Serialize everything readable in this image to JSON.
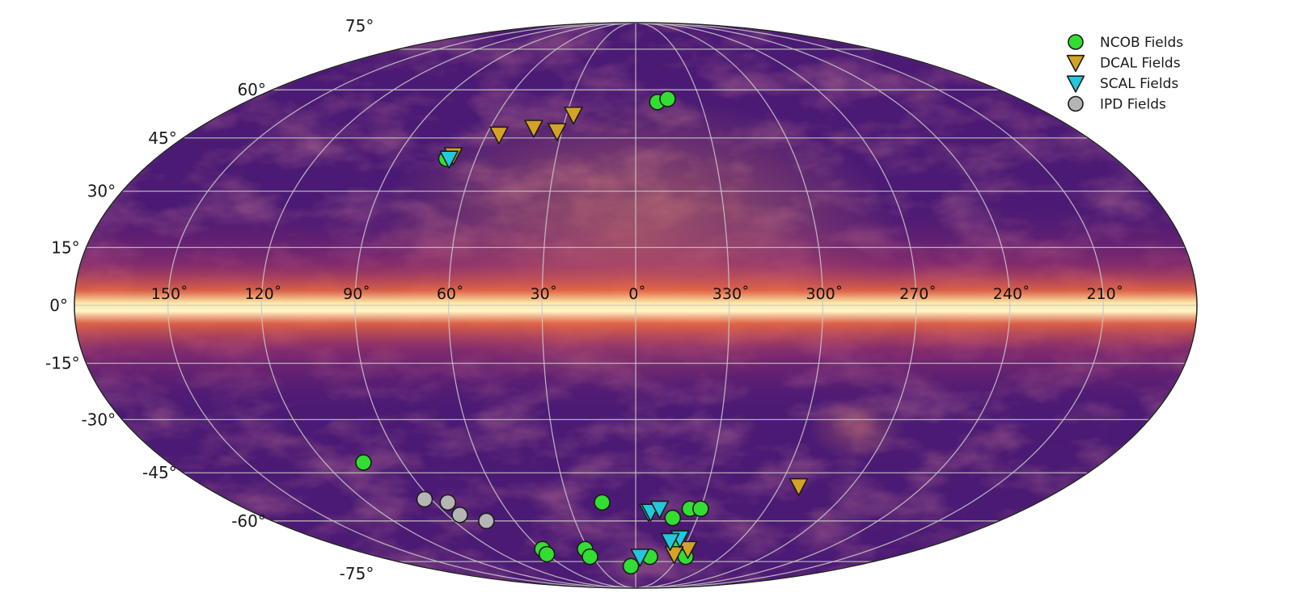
{
  "chart_data": {
    "type": "scatter",
    "projection": "mollweide",
    "background_colormap": "magma",
    "grid": true,
    "legend_position": "top-right",
    "lat_ticks": [
      {
        "value": 75,
        "label": "75°"
      },
      {
        "value": 60,
        "label": "60°"
      },
      {
        "value": 45,
        "label": "45°"
      },
      {
        "value": 30,
        "label": "30°"
      },
      {
        "value": 15,
        "label": "15°"
      },
      {
        "value": 0,
        "label": "0°"
      },
      {
        "value": -15,
        "label": "-15°"
      },
      {
        "value": -30,
        "label": "-30°"
      },
      {
        "value": -45,
        "label": "-45°"
      },
      {
        "value": -60,
        "label": "-60°"
      },
      {
        "value": -75,
        "label": "-75°"
      }
    ],
    "lon_ticks": [
      {
        "value": 150,
        "label": "150˚"
      },
      {
        "value": 120,
        "label": "120˚"
      },
      {
        "value": 90,
        "label": "90˚"
      },
      {
        "value": 60,
        "label": "60˚"
      },
      {
        "value": 30,
        "label": "30˚"
      },
      {
        "value": 0,
        "label": "0˚"
      },
      {
        "value": 330,
        "label": "330˚"
      },
      {
        "value": 300,
        "label": "300˚"
      },
      {
        "value": 270,
        "label": "270˚"
      },
      {
        "value": 240,
        "label": "240˚"
      },
      {
        "value": 210,
        "label": "210˚"
      }
    ],
    "series": [
      {
        "name": "NCOB Fields",
        "marker": "circle",
        "color": "#33dd33",
        "points": [
          {
            "l": 350,
            "b": 56
          },
          {
            "l": 345,
            "b": 57
          },
          {
            "l": 71,
            "b": 39
          },
          {
            "l": 105,
            "b": -42
          },
          {
            "l": 15,
            "b": -54
          },
          {
            "l": 335,
            "b": -56
          },
          {
            "l": 330,
            "b": -56
          },
          {
            "l": 342,
            "b": -59
          },
          {
            "l": 336,
            "b": -68
          },
          {
            "l": 59,
            "b": -70
          },
          {
            "l": 60,
            "b": -72
          },
          {
            "l": 32,
            "b": -70
          },
          {
            "l": 32,
            "b": -73
          },
          {
            "l": 4,
            "b": -77
          },
          {
            "l": 350,
            "b": -73
          },
          {
            "l": 325,
            "b": -73
          }
        ]
      },
      {
        "name": "DCAL Fields",
        "marker": "triangle-down",
        "color": "#d4a325",
        "points": [
          {
            "l": 69,
            "b": 40
          },
          {
            "l": 55,
            "b": 46
          },
          {
            "l": 42,
            "b": 48
          },
          {
            "l": 32,
            "b": 47
          },
          {
            "l": 27,
            "b": 52
          },
          {
            "l": 292,
            "b": -49
          },
          {
            "l": 327,
            "b": -70
          },
          {
            "l": 334,
            "b": -72
          }
        ]
      },
      {
        "name": "SCAL Fields",
        "marker": "triangle-down",
        "color": "#22c8dd",
        "points": [
          {
            "l": 70,
            "b": 39
          },
          {
            "l": 354,
            "b": -57
          },
          {
            "l": 353,
            "b": -57
          },
          {
            "l": 349,
            "b": -56
          },
          {
            "l": 335,
            "b": -66
          },
          {
            "l": 340,
            "b": -67
          },
          {
            "l": 357,
            "b": -73
          }
        ]
      },
      {
        "name": "IPD Fields",
        "marker": "circle",
        "color": "#b5b5b5",
        "points": [
          {
            "l": 93,
            "b": -53
          },
          {
            "l": 84,
            "b": -54
          },
          {
            "l": 84,
            "b": -58
          },
          {
            "l": 74,
            "b": -60
          }
        ]
      }
    ]
  }
}
